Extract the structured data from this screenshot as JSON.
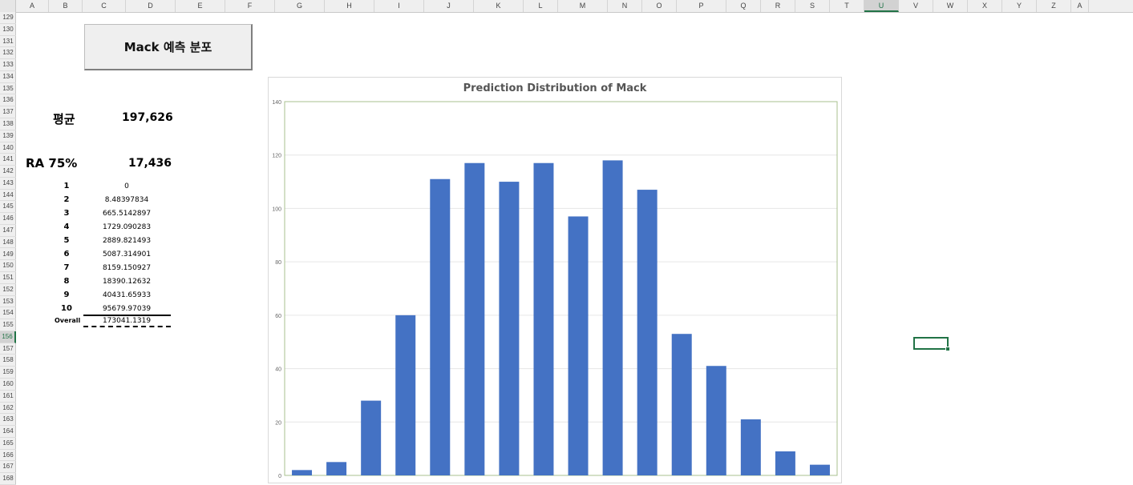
{
  "sheet": {
    "columns": [
      "A",
      "B",
      "C",
      "D",
      "E",
      "F",
      "G",
      "H",
      "I",
      "J",
      "K",
      "L",
      "M",
      "N",
      "O",
      "P",
      "Q",
      "R",
      "S",
      "T",
      "U",
      "V",
      "W",
      "X",
      "Y",
      "Z",
      "A"
    ],
    "selected_column": "U",
    "rows": [
      "129",
      "130",
      "131",
      "132",
      "133",
      "134",
      "135",
      "136",
      "137",
      "138",
      "139",
      "140",
      "141",
      "142",
      "143",
      "144",
      "145",
      "146",
      "147",
      "148",
      "149",
      "150",
      "151",
      "152",
      "153",
      "154",
      "155",
      "156",
      "157",
      "158",
      "159",
      "160",
      "161",
      "162",
      "163",
      "164",
      "165",
      "166",
      "167",
      "168"
    ],
    "selected_row": "156"
  },
  "button": {
    "label": "Mack 예측 분포"
  },
  "summary": {
    "mean_label": "평균",
    "mean_value": "197,626",
    "ra_label": "RA 75%",
    "ra_value": "17,436"
  },
  "results": [
    {
      "rank": "1",
      "value": "0"
    },
    {
      "rank": "2",
      "value": "8.48397834"
    },
    {
      "rank": "3",
      "value": "665.5142897"
    },
    {
      "rank": "4",
      "value": "1729.090283"
    },
    {
      "rank": "5",
      "value": "2889.821493"
    },
    {
      "rank": "6",
      "value": "5087.314901"
    },
    {
      "rank": "7",
      "value": "8159.150927"
    },
    {
      "rank": "8",
      "value": "18390.12632"
    },
    {
      "rank": "9",
      "value": "40431.65933"
    },
    {
      "rank": "10",
      "value": "95679.97039"
    }
  ],
  "overall": {
    "label": "Overall",
    "value": "173041.1319"
  },
  "colors": {
    "bar": "#4472c4",
    "plot_border": "#a9c08f",
    "grid": "#e6e6e6",
    "accent": "#217346"
  },
  "chart_data": {
    "type": "bar",
    "title": "Prediction Distribution of Mack",
    "xlabel": "",
    "ylabel": "",
    "ylim": [
      0,
      140
    ],
    "yticks": [
      0,
      20,
      40,
      60,
      80,
      100,
      120,
      140
    ],
    "grid": true,
    "values": [
      2,
      5,
      28,
      60,
      111,
      117,
      110,
      117,
      97,
      118,
      107,
      53,
      41,
      21,
      9,
      4
    ]
  }
}
